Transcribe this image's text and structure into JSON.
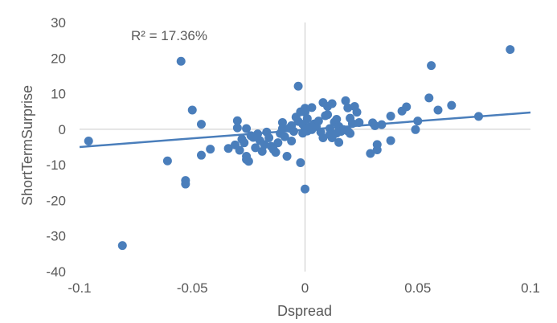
{
  "colors": {
    "point": "#4a7ebb",
    "trendline": "#4a7ebb",
    "axis_line": "#c9c9c9",
    "text": "#595959"
  },
  "chart_data": {
    "type": "scatter",
    "xlabel": "Dspread",
    "ylabel": "ShortTermSurprise",
    "annotation": "R² = 17.36%",
    "xlim": [
      -0.1,
      0.1
    ],
    "ylim": [
      -40,
      30
    ],
    "x_ticks": [
      -0.1,
      -0.05,
      0,
      0.05,
      0.1
    ],
    "x_tick_labels": [
      "-0.1",
      "-0.05",
      "0",
      "0.05",
      "0.1"
    ],
    "y_ticks": [
      30,
      20,
      10,
      0,
      -10,
      -20,
      -30,
      -40
    ],
    "y_tick_labels": [
      "30",
      "20",
      "10",
      "0",
      "-10",
      "-20",
      "-30",
      "-40"
    ],
    "grid": false,
    "legend": "none",
    "trendline": {
      "type": "linear",
      "x": [
        -0.1,
        0.1
      ],
      "y": [
        -5.0,
        4.7
      ]
    },
    "points": [
      {
        "x": -0.096,
        "y": -3.3
      },
      {
        "x": -0.081,
        "y": -32.7
      },
      {
        "x": -0.061,
        "y": -8.9
      },
      {
        "x": -0.055,
        "y": 19.1
      },
      {
        "x": -0.053,
        "y": -14.4
      },
      {
        "x": -0.053,
        "y": -15.4
      },
      {
        "x": -0.05,
        "y": 5.4
      },
      {
        "x": -0.046,
        "y": 1.4
      },
      {
        "x": -0.046,
        "y": -7.3
      },
      {
        "x": -0.042,
        "y": -5.6
      },
      {
        "x": -0.034,
        "y": -5.4
      },
      {
        "x": -0.031,
        "y": -4.4
      },
      {
        "x": -0.03,
        "y": 0.4
      },
      {
        "x": -0.03,
        "y": 2.4
      },
      {
        "x": -0.029,
        "y": -5.9
      },
      {
        "x": -0.028,
        "y": -2.8
      },
      {
        "x": -0.027,
        "y": -3.8
      },
      {
        "x": -0.026,
        "y": -7.6
      },
      {
        "x": -0.026,
        "y": -8.5
      },
      {
        "x": -0.026,
        "y": 0.2
      },
      {
        "x": -0.025,
        "y": -9.0
      },
      {
        "x": -0.024,
        "y": -1.8
      },
      {
        "x": -0.023,
        "y": -2.3
      },
      {
        "x": -0.022,
        "y": -5.2
      },
      {
        "x": -0.021,
        "y": -1.3
      },
      {
        "x": -0.02,
        "y": -3.2
      },
      {
        "x": -0.019,
        "y": -6.2
      },
      {
        "x": -0.018,
        "y": -4.3
      },
      {
        "x": -0.017,
        "y": -0.8
      },
      {
        "x": -0.016,
        "y": -2.4
      },
      {
        "x": -0.015,
        "y": -4.8
      },
      {
        "x": -0.014,
        "y": -5.7
      },
      {
        "x": -0.013,
        "y": -6.5
      },
      {
        "x": -0.012,
        "y": -3.8
      },
      {
        "x": -0.011,
        "y": -1.2
      },
      {
        "x": -0.01,
        "y": 1.9
      },
      {
        "x": -0.01,
        "y": 0.2
      },
      {
        "x": -0.009,
        "y": -2.1
      },
      {
        "x": -0.008,
        "y": -7.6
      },
      {
        "x": -0.007,
        "y": 0.3
      },
      {
        "x": -0.006,
        "y": 1.0
      },
      {
        "x": -0.006,
        "y": -3.3
      },
      {
        "x": -0.005,
        "y": -0.6
      },
      {
        "x": -0.004,
        "y": 3.4
      },
      {
        "x": -0.003,
        "y": 12.1
      },
      {
        "x": -0.003,
        "y": 2.2
      },
      {
        "x": -0.002,
        "y": 4.9
      },
      {
        "x": -0.002,
        "y": -9.4
      },
      {
        "x": -0.001,
        "y": -1.1
      },
      {
        "x": -0.001,
        "y": 1.4
      },
      {
        "x": 0.0,
        "y": -16.8
      },
      {
        "x": 0.0,
        "y": 0.3
      },
      {
        "x": 0.0,
        "y": 5.9
      },
      {
        "x": 0.0,
        "y": 4.8
      },
      {
        "x": 0.001,
        "y": 3.0
      },
      {
        "x": 0.001,
        "y": -0.5
      },
      {
        "x": 0.002,
        "y": 0.7
      },
      {
        "x": 0.003,
        "y": 6.1
      },
      {
        "x": 0.003,
        "y": -0.1
      },
      {
        "x": 0.004,
        "y": 1.5
      },
      {
        "x": 0.005,
        "y": 0.8
      },
      {
        "x": 0.006,
        "y": 2.3
      },
      {
        "x": 0.007,
        "y": -0.8
      },
      {
        "x": 0.008,
        "y": 7.5
      },
      {
        "x": 0.008,
        "y": -2.4
      },
      {
        "x": 0.009,
        "y": 3.8
      },
      {
        "x": 0.01,
        "y": 6.4
      },
      {
        "x": 0.01,
        "y": 4.1
      },
      {
        "x": 0.011,
        "y": 0.2
      },
      {
        "x": 0.011,
        "y": -1.5
      },
      {
        "x": 0.012,
        "y": 7.2
      },
      {
        "x": 0.012,
        "y": -2.4
      },
      {
        "x": 0.013,
        "y": 2.0
      },
      {
        "x": 0.014,
        "y": 2.8
      },
      {
        "x": 0.014,
        "y": -1.1
      },
      {
        "x": 0.015,
        "y": 0.8
      },
      {
        "x": 0.015,
        "y": -3.7
      },
      {
        "x": 0.016,
        "y": -0.6
      },
      {
        "x": 0.017,
        "y": -0.1
      },
      {
        "x": 0.018,
        "y": 8.0
      },
      {
        "x": 0.019,
        "y": -0.5
      },
      {
        "x": 0.019,
        "y": 6.0
      },
      {
        "x": 0.02,
        "y": 3.1
      },
      {
        "x": 0.02,
        "y": -1.2
      },
      {
        "x": 0.021,
        "y": 1.6
      },
      {
        "x": 0.022,
        "y": 6.4
      },
      {
        "x": 0.023,
        "y": 4.8
      },
      {
        "x": 0.024,
        "y": 1.9
      },
      {
        "x": 0.029,
        "y": -6.8
      },
      {
        "x": 0.03,
        "y": 1.8
      },
      {
        "x": 0.031,
        "y": 1.0
      },
      {
        "x": 0.032,
        "y": -4.3
      },
      {
        "x": 0.032,
        "y": -5.8
      },
      {
        "x": 0.034,
        "y": 1.3
      },
      {
        "x": 0.038,
        "y": -3.2
      },
      {
        "x": 0.038,
        "y": 3.7
      },
      {
        "x": 0.043,
        "y": 5.1
      },
      {
        "x": 0.045,
        "y": 6.3
      },
      {
        "x": 0.049,
        "y": -0.1
      },
      {
        "x": 0.05,
        "y": 2.3
      },
      {
        "x": 0.055,
        "y": 8.8
      },
      {
        "x": 0.056,
        "y": 17.9
      },
      {
        "x": 0.059,
        "y": 5.4
      },
      {
        "x": 0.065,
        "y": 6.7
      },
      {
        "x": 0.077,
        "y": 3.6
      },
      {
        "x": 0.091,
        "y": 22.4
      }
    ]
  }
}
